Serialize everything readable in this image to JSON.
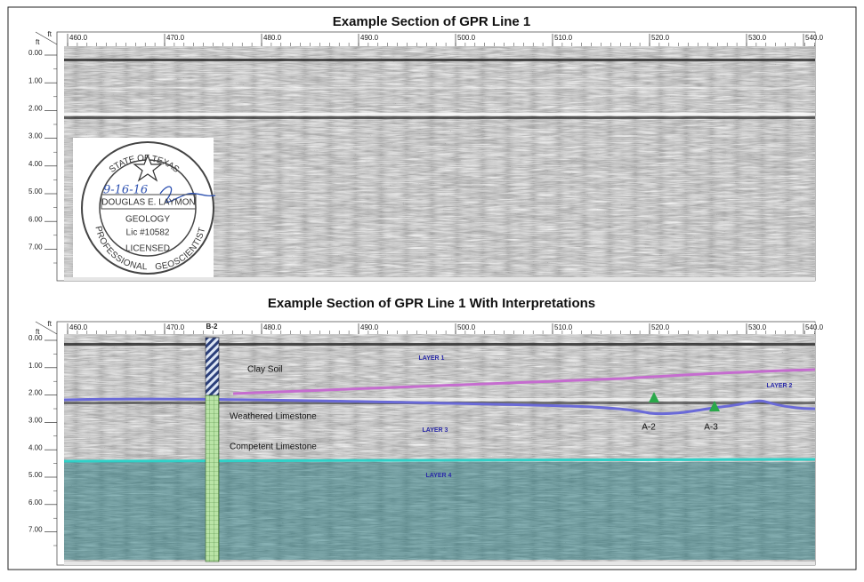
{
  "panels": [
    {
      "title": "Example Section of GPR Line 1",
      "x_unit": "ft",
      "y_unit": "ft",
      "x_ticks": [
        "460.0",
        "470.0",
        "480.0",
        "490.0",
        "500.0",
        "510.0",
        "520.0",
        "530.0",
        "540.0"
      ],
      "depth_ticks": [
        "0.00",
        "1.00",
        "2.00",
        "3.00",
        "4.00",
        "5.00",
        "6.00",
        "7.00"
      ]
    },
    {
      "title": "Example Section of GPR  Line 1 With Interpretations",
      "x_unit": "ft",
      "y_unit": "ft",
      "x_ticks": [
        "460.0",
        "470.0",
        "480.0",
        "490.0",
        "500.0",
        "510.0",
        "520.0",
        "530.0",
        "540.0"
      ],
      "depth_ticks": [
        "0.00",
        "1.00",
        "2.00",
        "3.00",
        "4.00",
        "5.00",
        "6.00",
        "7.00"
      ],
      "boring": "B-2",
      "units": [
        "Clay Soil",
        "Weathered Limestone",
        "Competent Limestone"
      ],
      "layers": [
        "LAYER 1",
        "LAYER 2",
        "LAYER 3",
        "LAYER 4"
      ],
      "anomalies": [
        "A-2",
        "A-3"
      ]
    }
  ],
  "stamp": {
    "state": "STATE OF TEXAS",
    "signature": "9-16-16",
    "name": "DOUGLAS E. LAYMON",
    "discipline": "GEOLOGY",
    "license": "Lic #10582",
    "licensed": "LICENSED",
    "left_arc": "PROFESSIONAL",
    "right_arc": "GEOSCIENTIST"
  }
}
